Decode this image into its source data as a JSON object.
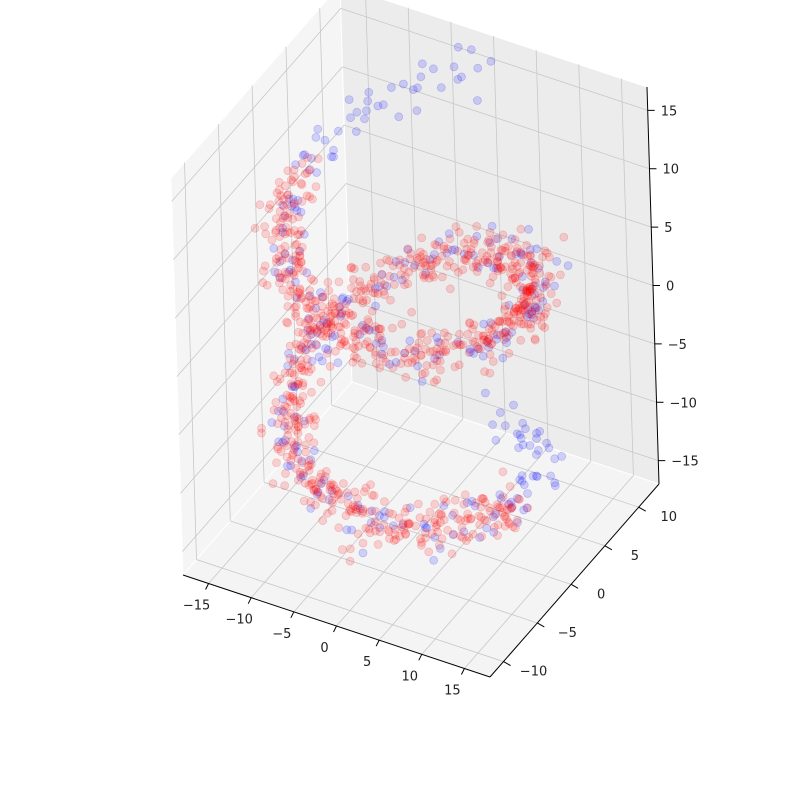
{
  "chart_data": {
    "type": "scatter",
    "projection": "3d",
    "title": "",
    "xlabel": "",
    "ylabel": "",
    "zlabel": "",
    "xlim": [
      -18,
      18
    ],
    "ylim": [
      -12,
      13
    ],
    "zlim": [
      -17,
      17
    ],
    "x_ticks": [
      -15,
      -10,
      -5,
      0,
      5,
      10,
      15
    ],
    "y_ticks": [
      -10,
      -5,
      0,
      5,
      10
    ],
    "z_ticks": [
      -15,
      -10,
      -5,
      0,
      5,
      10,
      15
    ],
    "x_tick_labels": [
      "−15",
      "−10",
      "−5",
      "0",
      "5",
      "10",
      "15"
    ],
    "y_tick_labels": [
      "−10",
      "−5",
      "0",
      "5",
      "10"
    ],
    "z_tick_labels": [
      "−15",
      "−10",
      "−5",
      "0",
      "5",
      "10",
      "15"
    ],
    "grid": true,
    "legend": "none",
    "marker_alpha": 0.15,
    "series": [
      {
        "color": "#0000ff",
        "shape": "helix",
        "t_range": [
          -6.28,
          6.28
        ],
        "radius": 12,
        "z_range": [
          -15,
          15
        ],
        "count": 300
      },
      {
        "color": "#ff0000",
        "shape": "helix",
        "t_range": [
          -4.71,
          4.71
        ],
        "radius": 12,
        "z_range": [
          -11.25,
          11.25
        ],
        "count": 900
      }
    ],
    "pane_colors": [
      "#f2f2f2",
      "#f2f2f2",
      "#f2f2f2"
    ],
    "grid_color": "#c8c8c8"
  }
}
